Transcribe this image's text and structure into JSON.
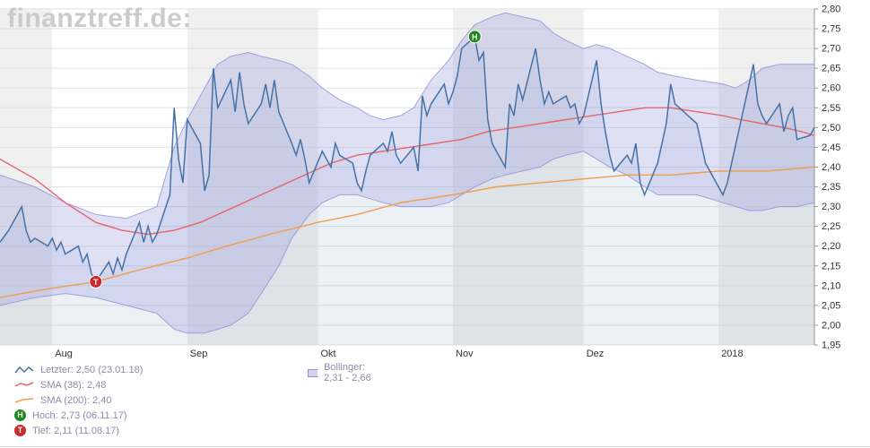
{
  "watermark": "finanztreff.de:",
  "colors": {
    "price": "#4572a7",
    "sma38": "#e8636a",
    "sma200": "#f39a4c",
    "bollinger": "#8f8fdc",
    "priceFill": "#4572a7",
    "stripe": "#f0f0f0",
    "grid": "#e2e2e2",
    "axis": "#999999",
    "axisText": "#333333",
    "legendText": "#8c8ca8",
    "markerHigh": "#1e8a1e",
    "markerLow": "#cc2a2a",
    "watermark": "#cbcbcb"
  },
  "legend": {
    "items": [
      {
        "id": "letzter",
        "text": "Letzter: 2,50 (23.01.18)"
      },
      {
        "id": "bollinger",
        "text": "Bollinger: 2,31 - 2,66"
      },
      {
        "id": "sma38",
        "text": "SMA (38): 2,48"
      },
      {
        "id": "sma200",
        "text": "SMA (200): 2,40"
      },
      {
        "id": "hoch",
        "glyph": "H",
        "text": "Hoch: 2,73 (06.11.17)"
      },
      {
        "id": "tief",
        "glyph": "T",
        "text": "Tief: 2,11 (11.08.17)"
      }
    ]
  },
  "chart_data": {
    "type": "line",
    "title": "",
    "xlabel": "",
    "ylabel": "",
    "grid": true,
    "legend_position": "bottom-left",
    "x_range": [
      0,
      187
    ],
    "y_range": [
      1.95,
      2.8
    ],
    "y_tick_step": 0.05,
    "x_ticks": [
      {
        "label": "Aug",
        "day": 12
      },
      {
        "label": "Sep",
        "day": 43
      },
      {
        "label": "Okt",
        "day": 73
      },
      {
        "label": "Nov",
        "day": 104
      },
      {
        "label": "Dez",
        "day": 134
      },
      {
        "label": "2018",
        "day": 165
      }
    ],
    "series": [
      {
        "name": "Letzter",
        "color": "#4572a7",
        "points": [
          [
            0,
            2.21
          ],
          [
            2,
            2.24
          ],
          [
            4,
            2.28
          ],
          [
            5,
            2.3
          ],
          [
            6,
            2.24
          ],
          [
            7,
            2.21
          ],
          [
            8,
            2.22
          ],
          [
            11,
            2.2
          ],
          [
            12,
            2.22
          ],
          [
            13,
            2.19
          ],
          [
            14,
            2.21
          ],
          [
            15,
            2.18
          ],
          [
            18,
            2.2
          ],
          [
            19,
            2.16
          ],
          [
            20,
            2.18
          ],
          [
            21,
            2.13
          ],
          [
            22,
            2.11
          ],
          [
            25,
            2.16
          ],
          [
            26,
            2.13
          ],
          [
            27,
            2.17
          ],
          [
            28,
            2.14
          ],
          [
            29,
            2.18
          ],
          [
            32,
            2.26
          ],
          [
            33,
            2.21
          ],
          [
            34,
            2.25
          ],
          [
            35,
            2.21
          ],
          [
            36,
            2.23
          ],
          [
            39,
            2.33
          ],
          [
            40,
            2.55
          ],
          [
            41,
            2.42
          ],
          [
            42,
            2.36
          ],
          [
            43,
            2.52
          ],
          [
            46,
            2.46
          ],
          [
            47,
            2.34
          ],
          [
            48,
            2.38
          ],
          [
            49,
            2.65
          ],
          [
            50,
            2.55
          ],
          [
            53,
            2.62
          ],
          [
            54,
            2.54
          ],
          [
            55,
            2.64
          ],
          [
            56,
            2.56
          ],
          [
            57,
            2.51
          ],
          [
            60,
            2.56
          ],
          [
            61,
            2.61
          ],
          [
            62,
            2.55
          ],
          [
            63,
            2.62
          ],
          [
            64,
            2.54
          ],
          [
            67,
            2.46
          ],
          [
            68,
            2.43
          ],
          [
            69,
            2.47
          ],
          [
            70,
            2.42
          ],
          [
            71,
            2.36
          ],
          [
            74,
            2.44
          ],
          [
            76,
            2.4
          ],
          [
            77,
            2.46
          ],
          [
            78,
            2.43
          ],
          [
            81,
            2.41
          ],
          [
            82,
            2.36
          ],
          [
            83,
            2.34
          ],
          [
            84,
            2.39
          ],
          [
            85,
            2.43
          ],
          [
            88,
            2.46
          ],
          [
            89,
            2.44
          ],
          [
            90,
            2.49
          ],
          [
            91,
            2.43
          ],
          [
            92,
            2.41
          ],
          [
            95,
            2.45
          ],
          [
            96,
            2.39
          ],
          [
            97,
            2.58
          ],
          [
            98,
            2.53
          ],
          [
            99,
            2.56
          ],
          [
            102,
            2.61
          ],
          [
            103,
            2.56
          ],
          [
            104,
            2.59
          ],
          [
            105,
            2.63
          ],
          [
            106,
            2.7
          ],
          [
            109,
            2.73
          ],
          [
            110,
            2.67
          ],
          [
            111,
            2.69
          ],
          [
            112,
            2.52
          ],
          [
            113,
            2.46
          ],
          [
            116,
            2.4
          ],
          [
            117,
            2.56
          ],
          [
            118,
            2.53
          ],
          [
            119,
            2.61
          ],
          [
            120,
            2.57
          ],
          [
            123,
            2.7
          ],
          [
            124,
            2.62
          ],
          [
            125,
            2.56
          ],
          [
            126,
            2.59
          ],
          [
            127,
            2.56
          ],
          [
            130,
            2.58
          ],
          [
            131,
            2.55
          ],
          [
            132,
            2.56
          ],
          [
            133,
            2.51
          ],
          [
            134,
            2.53
          ],
          [
            137,
            2.67
          ],
          [
            138,
            2.56
          ],
          [
            139,
            2.49
          ],
          [
            140,
            2.43
          ],
          [
            141,
            2.39
          ],
          [
            144,
            2.43
          ],
          [
            145,
            2.41
          ],
          [
            146,
            2.46
          ],
          [
            147,
            2.36
          ],
          [
            148,
            2.33
          ],
          [
            151,
            2.41
          ],
          [
            152,
            2.46
          ],
          [
            153,
            2.51
          ],
          [
            154,
            2.61
          ],
          [
            155,
            2.56
          ],
          [
            160,
            2.51
          ],
          [
            161,
            2.46
          ],
          [
            162,
            2.41
          ],
          [
            166,
            2.33
          ],
          [
            167,
            2.36
          ],
          [
            168,
            2.41
          ],
          [
            169,
            2.46
          ],
          [
            172,
            2.61
          ],
          [
            173,
            2.66
          ],
          [
            174,
            2.56
          ],
          [
            175,
            2.53
          ],
          [
            176,
            2.51
          ],
          [
            179,
            2.56
          ],
          [
            180,
            2.49
          ],
          [
            181,
            2.53
          ],
          [
            182,
            2.55
          ],
          [
            183,
            2.47
          ],
          [
            186,
            2.48
          ],
          [
            187,
            2.5
          ]
        ]
      },
      {
        "name": "SMA (38)",
        "color": "#e8636a",
        "points": [
          [
            0,
            2.42
          ],
          [
            8,
            2.37
          ],
          [
            15,
            2.31
          ],
          [
            22,
            2.26
          ],
          [
            28,
            2.24
          ],
          [
            34,
            2.23
          ],
          [
            40,
            2.24
          ],
          [
            46,
            2.26
          ],
          [
            52,
            2.29
          ],
          [
            58,
            2.32
          ],
          [
            64,
            2.35
          ],
          [
            70,
            2.38
          ],
          [
            76,
            2.41
          ],
          [
            82,
            2.43
          ],
          [
            88,
            2.44
          ],
          [
            94,
            2.45
          ],
          [
            100,
            2.46
          ],
          [
            106,
            2.47
          ],
          [
            112,
            2.49
          ],
          [
            118,
            2.5
          ],
          [
            124,
            2.51
          ],
          [
            130,
            2.52
          ],
          [
            136,
            2.53
          ],
          [
            142,
            2.54
          ],
          [
            148,
            2.55
          ],
          [
            154,
            2.55
          ],
          [
            160,
            2.54
          ],
          [
            166,
            2.53
          ],
          [
            170,
            2.52
          ],
          [
            175,
            2.51
          ],
          [
            180,
            2.5
          ],
          [
            184,
            2.49
          ],
          [
            187,
            2.48
          ]
        ]
      },
      {
        "name": "SMA (200)",
        "color": "#f39a4c",
        "points": [
          [
            0,
            2.07
          ],
          [
            10,
            2.09
          ],
          [
            22,
            2.11
          ],
          [
            32,
            2.14
          ],
          [
            43,
            2.17
          ],
          [
            52,
            2.2
          ],
          [
            62,
            2.23
          ],
          [
            73,
            2.26
          ],
          [
            82,
            2.28
          ],
          [
            92,
            2.31
          ],
          [
            104,
            2.33
          ],
          [
            114,
            2.35
          ],
          [
            124,
            2.36
          ],
          [
            134,
            2.37
          ],
          [
            144,
            2.38
          ],
          [
            154,
            2.38
          ],
          [
            165,
            2.39
          ],
          [
            176,
            2.39
          ],
          [
            187,
            2.4
          ]
        ]
      },
      {
        "name": "Bollinger",
        "color": "#8f8fdc",
        "band": [
          [
            0,
            2.38,
            2.05
          ],
          [
            8,
            2.35,
            2.07
          ],
          [
            15,
            2.31,
            2.08
          ],
          [
            22,
            2.28,
            2.07
          ],
          [
            29,
            2.27,
            2.05
          ],
          [
            36,
            2.3,
            2.03
          ],
          [
            40,
            2.45,
            1.99
          ],
          [
            43,
            2.52,
            1.98
          ],
          [
            47,
            2.6,
            1.98
          ],
          [
            50,
            2.66,
            1.99
          ],
          [
            53,
            2.68,
            2.0
          ],
          [
            57,
            2.69,
            2.03
          ],
          [
            60,
            2.68,
            2.08
          ],
          [
            64,
            2.67,
            2.15
          ],
          [
            67,
            2.66,
            2.22
          ],
          [
            71,
            2.63,
            2.28
          ],
          [
            74,
            2.6,
            2.31
          ],
          [
            78,
            2.57,
            2.33
          ],
          [
            82,
            2.55,
            2.33
          ],
          [
            85,
            2.53,
            2.32
          ],
          [
            88,
            2.52,
            2.31
          ],
          [
            92,
            2.53,
            2.3
          ],
          [
            95,
            2.55,
            2.3
          ],
          [
            99,
            2.62,
            2.3
          ],
          [
            103,
            2.67,
            2.31
          ],
          [
            106,
            2.72,
            2.33
          ],
          [
            109,
            2.76,
            2.35
          ],
          [
            113,
            2.78,
            2.37
          ],
          [
            116,
            2.79,
            2.38
          ],
          [
            120,
            2.78,
            2.39
          ],
          [
            124,
            2.77,
            2.4
          ],
          [
            127,
            2.74,
            2.42
          ],
          [
            130,
            2.72,
            2.43
          ],
          [
            134,
            2.7,
            2.44
          ],
          [
            137,
            2.71,
            2.42
          ],
          [
            140,
            2.7,
            2.4
          ],
          [
            144,
            2.68,
            2.38
          ],
          [
            148,
            2.66,
            2.35
          ],
          [
            151,
            2.64,
            2.33
          ],
          [
            155,
            2.63,
            2.33
          ],
          [
            160,
            2.62,
            2.33
          ],
          [
            166,
            2.61,
            2.31
          ],
          [
            169,
            2.6,
            2.3
          ],
          [
            172,
            2.62,
            2.29
          ],
          [
            175,
            2.65,
            2.29
          ],
          [
            179,
            2.66,
            2.3
          ],
          [
            183,
            2.66,
            2.3
          ],
          [
            187,
            2.66,
            2.31
          ]
        ]
      }
    ],
    "markers": [
      {
        "name": "Hoch",
        "label": "H",
        "day": 109,
        "value": 2.73,
        "color_key": "markerHigh",
        "date": "06.11.17"
      },
      {
        "name": "Tief",
        "label": "T",
        "day": 22,
        "value": 2.11,
        "color_key": "markerLow",
        "date": "11.08.17"
      }
    ]
  }
}
